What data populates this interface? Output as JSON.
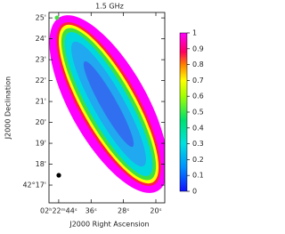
{
  "chart_data": {
    "type": "image",
    "title": "1.5 GHz",
    "xlabel": "J2000 Right Ascension",
    "ylabel": "J2000 Declination",
    "xlim": [
      46.4,
      17.8
    ],
    "xticks": [
      {
        "value": 44,
        "label": "02ʰ22ᵐ44ˢ"
      },
      {
        "value": 36,
        "label": "36ˢ"
      },
      {
        "value": 28,
        "label": "28ˢ"
      },
      {
        "value": 20,
        "label": "20ˢ"
      }
    ],
    "ylim": [
      16.15,
      25.26
    ],
    "yticks": [
      {
        "value": 25,
        "label": "25'"
      },
      {
        "value": 24,
        "label": "24'"
      },
      {
        "value": 23,
        "label": "23'"
      },
      {
        "value": 22,
        "label": "22'"
      },
      {
        "value": 21,
        "label": "21'"
      },
      {
        "value": 20,
        "label": "20'"
      },
      {
        "value": 19,
        "label": "19'"
      },
      {
        "value": 18,
        "label": "18'"
      },
      {
        "value": 17,
        "label": "42°17'"
      }
    ],
    "colorbar": {
      "ylim": [
        0,
        1
      ],
      "yticks": [
        0,
        0.1,
        0.2,
        0.3,
        0.4,
        0.5,
        0.6,
        0.7,
        0.8,
        0.9,
        1
      ]
    }
  }
}
